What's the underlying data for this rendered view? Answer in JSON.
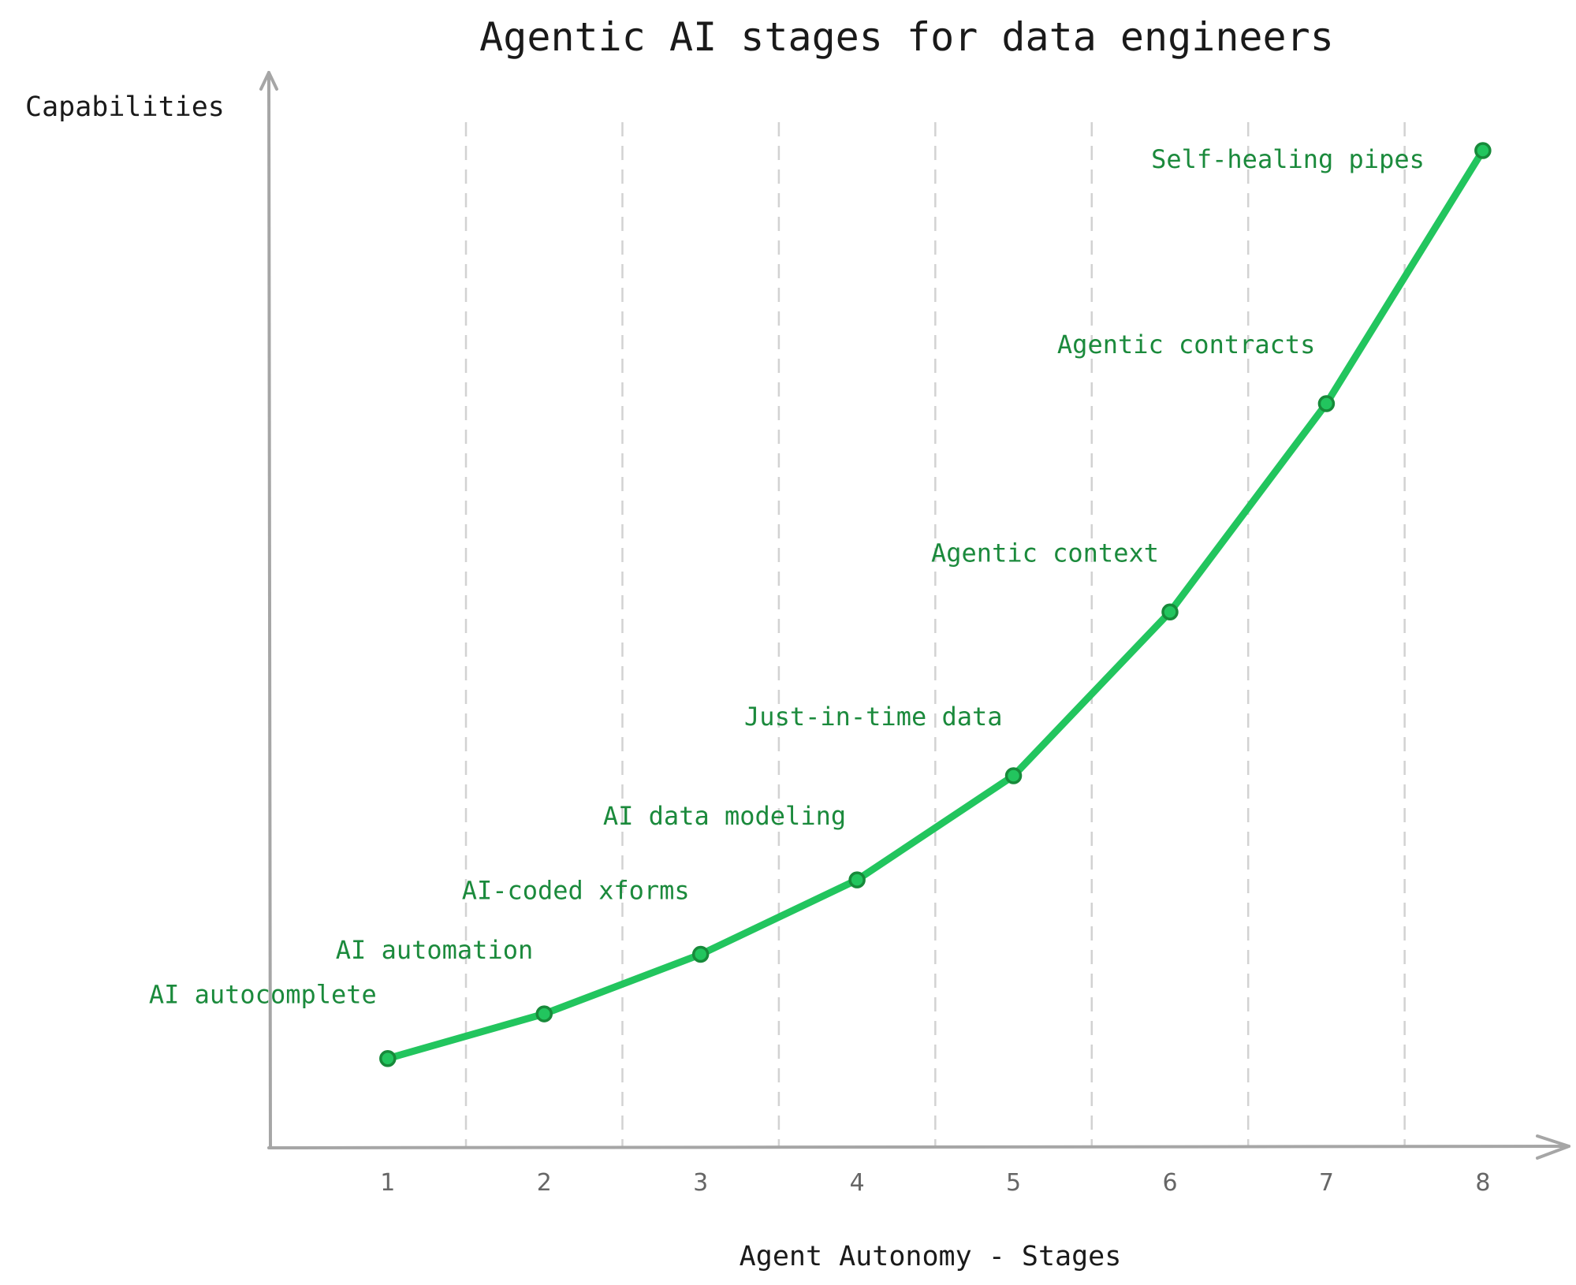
{
  "chart_data": {
    "type": "line",
    "title": "Agentic AI stages for data engineers",
    "xlabel": "Agent Autonomy - Stages",
    "ylabel": "Capabilities",
    "categories": [
      "1",
      "2",
      "3",
      "4",
      "5",
      "6",
      "7",
      "8"
    ],
    "x": [
      1,
      2,
      3,
      4,
      5,
      6,
      7,
      8
    ],
    "series": [
      {
        "name": "",
        "values": [
          1.0,
          1.6,
          2.4,
          3.4,
          4.8,
          7.0,
          9.8,
          13.2
        ],
        "labels": [
          "AI autocomplete",
          "AI automation",
          "AI-coded xforms",
          "AI data modeling",
          "Just-in-time data",
          "Agentic context",
          "Agentic contracts",
          "Self-healing pipes"
        ]
      }
    ],
    "xlim": [
      0.24,
      8.55
    ],
    "ylim": [
      -0.2,
      13.2
    ],
    "grid": {
      "vertical": true,
      "horizontal": false
    },
    "legend": "none",
    "colors": {
      "line": "#22c55e",
      "point_stroke": "#178a3a",
      "label": "#1b8a3c",
      "axis": "#a6a6a6",
      "grid": "#d2d2d2"
    }
  }
}
